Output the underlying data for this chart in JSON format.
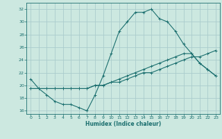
{
  "xlabel": "Humidex (Indice chaleur)",
  "ylabel": "",
  "bg_color": "#cce8e0",
  "grid_color": "#aacccc",
  "line_color": "#1a6e6e",
  "xlim": [
    -0.5,
    23.5
  ],
  "ylim": [
    15.5,
    33.0
  ],
  "xticks": [
    0,
    1,
    2,
    3,
    4,
    5,
    6,
    7,
    8,
    9,
    10,
    11,
    12,
    13,
    14,
    15,
    16,
    17,
    18,
    19,
    20,
    21,
    22,
    23
  ],
  "yticks": [
    16,
    18,
    20,
    22,
    24,
    26,
    28,
    30,
    32
  ],
  "line1_x": [
    0,
    1,
    2,
    3,
    4,
    5,
    6,
    7,
    8,
    9,
    10,
    11,
    12,
    13,
    14,
    15,
    16,
    17,
    18,
    19,
    20,
    21,
    22,
    23
  ],
  "line1_y": [
    21,
    19.5,
    18.5,
    17.5,
    17,
    17,
    16.5,
    16,
    18.5,
    21.5,
    25,
    28.5,
    30,
    31.5,
    31.5,
    32,
    30.5,
    30,
    28.5,
    26.5,
    25,
    23.5,
    22.5,
    21.5
  ],
  "line2_x": [
    0,
    1,
    2,
    3,
    4,
    5,
    6,
    7,
    8,
    9,
    10,
    11,
    12,
    13,
    14,
    15,
    16,
    17,
    18,
    19,
    20,
    21,
    22,
    23
  ],
  "line2_y": [
    19.5,
    19.5,
    19.5,
    19.5,
    19.5,
    19.5,
    19.5,
    19.5,
    20,
    20,
    20.5,
    21,
    21.5,
    22,
    22.5,
    23,
    23.5,
    24,
    24.5,
    25,
    25,
    23.5,
    22.5,
    21.5
  ],
  "line3_x": [
    0,
    1,
    2,
    3,
    4,
    5,
    6,
    7,
    8,
    9,
    10,
    11,
    12,
    13,
    14,
    15,
    16,
    17,
    18,
    19,
    20,
    21,
    22,
    23
  ],
  "line3_y": [
    19.5,
    19.5,
    19.5,
    19.5,
    19.5,
    19.5,
    19.5,
    19.5,
    20,
    20,
    20.5,
    20.5,
    21,
    21.5,
    22,
    22,
    22.5,
    23,
    23.5,
    24,
    24.5,
    24.5,
    25,
    25.5
  ]
}
